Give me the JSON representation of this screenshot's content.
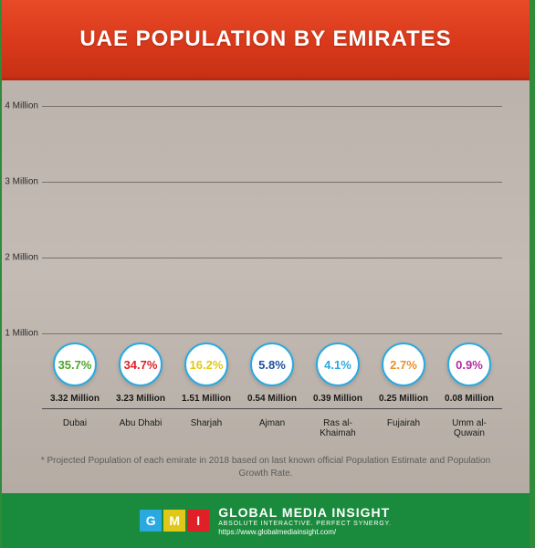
{
  "title": "UAE POPULATION BY EMIRATES",
  "chart": {
    "type": "bar",
    "ylabel_suffix": " Million",
    "ylim_min": 0,
    "ylim_max": 4,
    "ytick_step": 1,
    "yticks": [
      "1 Million",
      "2 Million",
      "3 Million",
      "4 Million"
    ],
    "gridline_color": "#7a726a",
    "axis_color": "#4a4a4a",
    "bubble_border": "#2aa9e0",
    "bubble_bg": "#ffffff",
    "bar_width_pct": 72,
    "items": [
      {
        "name": "Dubai",
        "value_label": "3.32 Million",
        "value": 3.32,
        "percent": "35.7%",
        "bar_color": "#4fa52a",
        "percent_color": "#4fa52a"
      },
      {
        "name": "Abu Dhabi",
        "value_label": "3.23 Million",
        "value": 3.23,
        "percent": "34.7%",
        "bar_color": "#e11f26",
        "percent_color": "#e11f26"
      },
      {
        "name": "Sharjah",
        "value_label": "1.51 Million",
        "value": 1.51,
        "percent": "16.2%",
        "bar_color": "#e0c81a",
        "percent_color": "#e0c81a"
      },
      {
        "name": "Ajman",
        "value_label": "0.54 Million",
        "value": 0.54,
        "percent": "5.8%",
        "bar_color": "#1e4fa3",
        "percent_color": "#1e4fa3"
      },
      {
        "name": "Ras al-Khaimah",
        "value_label": "0.39 Million",
        "value": 0.39,
        "percent": "4.1%",
        "bar_color": "#2aa9e0",
        "percent_color": "#2aa9e0"
      },
      {
        "name": "Fujairah",
        "value_label": "0.25 Million",
        "value": 0.25,
        "percent": "2.7%",
        "bar_color": "#e8912a",
        "percent_color": "#e8912a"
      },
      {
        "name": "Umm al-Quwain",
        "value_label": "0.08 Million",
        "value": 0.08,
        "percent": "0.9%",
        "bar_color": "#b42aa3",
        "percent_color": "#b42aa3"
      }
    ]
  },
  "footnote": "* Projected Population of each emirate in 2018 based on last known official Population Estimate and Population Growth Rate.",
  "footer": {
    "logo_letters": [
      "G",
      "M",
      "I"
    ],
    "logo_colors": [
      "#2aa9e0",
      "#e0c81a",
      "#e11f26"
    ],
    "brand_name": "GLOBAL MEDIA INSIGHT",
    "tagline": "ABSOLUTE INTERACTIVE. PERFECT SYNERGY.",
    "url": "https://www.globalmediainsight.com/",
    "bg_color": "#1a8a3c"
  },
  "header_bg": "#e84a27",
  "page_border": "#2f8a3a"
}
